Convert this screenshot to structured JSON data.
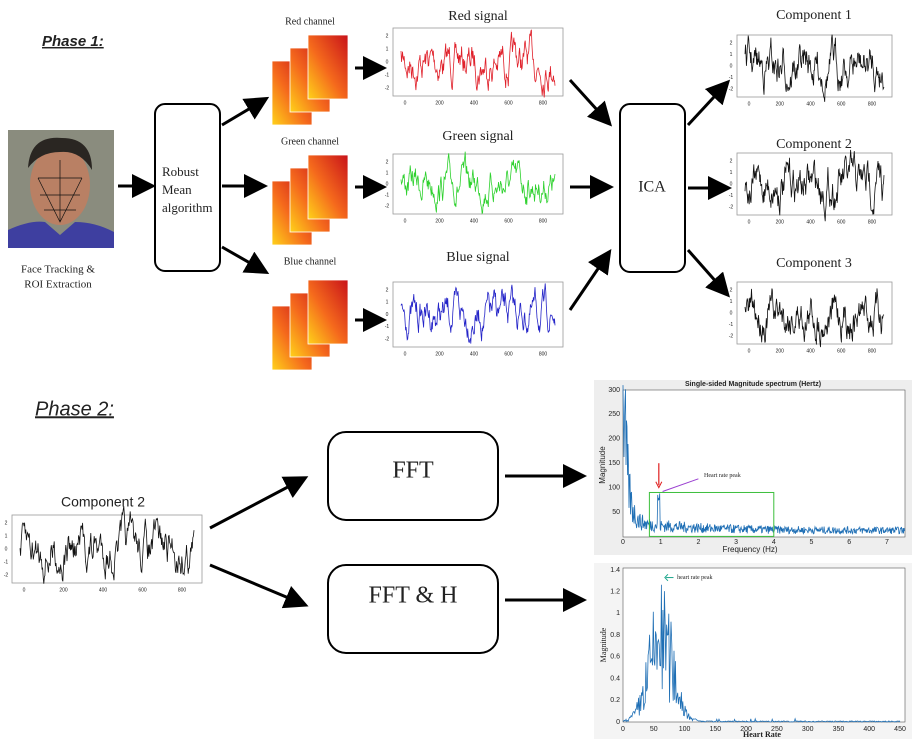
{
  "phase1": "Phase 1:",
  "face_caption": [
    "Face Tracking &",
    "ROI Extraction"
  ],
  "robust_box": [
    "Robust",
    "Mean",
    "algorithm"
  ],
  "channels": [
    "Red channel",
    "Green channel",
    "Blue channel"
  ],
  "signals": [
    "Red signal",
    "Green signal",
    "Blue signal"
  ],
  "ica": "ICA",
  "components": [
    "Component 1",
    "Component 2",
    "Component 3"
  ],
  "phase2": "Phase 2:",
  "phase2_input": "Component 2",
  "fft": "FFT",
  "fft_h": "FFT & H",
  "mini_plot": {
    "xticks": [
      "0",
      "200",
      "400",
      "600",
      "800"
    ],
    "yticks": [
      "-2",
      "-1",
      "0",
      "1",
      "2"
    ]
  },
  "spectrum": {
    "title": "Single-sided Magnitude spectrum (Hertz)",
    "xlabel": "Frequency (Hz)",
    "ylabel": "Magnitude",
    "annotation": "Heart rate peak",
    "xticks": [
      "0",
      "1",
      "2",
      "3",
      "4",
      "5",
      "6",
      "7"
    ],
    "yticks": [
      "50",
      "100",
      "150",
      "200",
      "250",
      "300"
    ]
  },
  "heart_rate_spectrum": {
    "xlabel": "Heart Rate",
    "ylabel": "Magnitude",
    "annotation": "heart rate peak",
    "xticks": [
      "0",
      "50",
      "100",
      "150",
      "200",
      "250",
      "300",
      "350",
      "400",
      "450"
    ],
    "yticks": [
      "0",
      "0.2",
      "0.4",
      "0.6",
      "0.8",
      "1",
      "1.2",
      "1.4"
    ]
  }
}
